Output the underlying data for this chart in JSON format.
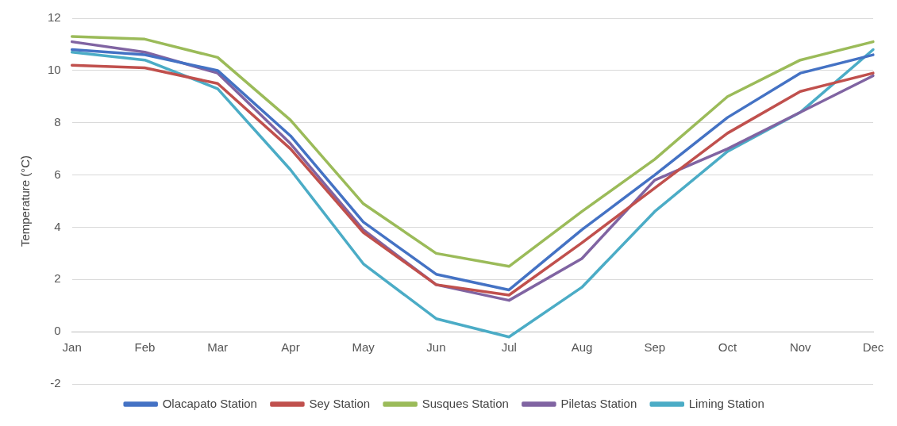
{
  "chart_data": {
    "type": "line",
    "ylabel": "Temperature (°C)",
    "categories": [
      "Jan",
      "Feb",
      "Mar",
      "Apr",
      "May",
      "Jun",
      "Jul",
      "Aug",
      "Sep",
      "Oct",
      "Nov",
      "Dec"
    ],
    "series": [
      {
        "name": "Olacapato Station",
        "color": "#4472c4",
        "values": [
          10.8,
          10.6,
          10.0,
          7.5,
          4.2,
          2.2,
          1.6,
          3.9,
          6.0,
          8.2,
          9.9,
          10.6
        ]
      },
      {
        "name": "Sey Station",
        "color": "#c0504d",
        "values": [
          10.2,
          10.1,
          9.5,
          7.0,
          3.8,
          1.8,
          1.4,
          3.4,
          5.5,
          7.6,
          9.2,
          9.9
        ]
      },
      {
        "name": "Susques Station",
        "color": "#9bbb59",
        "values": [
          11.3,
          11.2,
          10.5,
          8.1,
          4.9,
          3.0,
          2.5,
          4.6,
          6.6,
          9.0,
          10.4,
          11.1
        ]
      },
      {
        "name": "Piletas Station",
        "color": "#8064a2",
        "values": [
          11.1,
          10.7,
          9.9,
          7.2,
          3.9,
          1.8,
          1.2,
          2.8,
          5.8,
          7.0,
          8.4,
          9.8
        ]
      },
      {
        "name": "Liming Station",
        "color": "#4bacc6",
        "values": [
          10.7,
          10.4,
          9.3,
          6.2,
          2.6,
          0.5,
          -0.2,
          1.7,
          4.6,
          6.9,
          8.4,
          10.8
        ]
      }
    ],
    "ylim": [
      -2,
      12
    ],
    "yticks": [
      -2,
      0,
      2,
      4,
      6,
      8,
      10,
      12
    ],
    "grid": "y",
    "legend": "bottom",
    "marker": "none",
    "line_style": "solid"
  }
}
